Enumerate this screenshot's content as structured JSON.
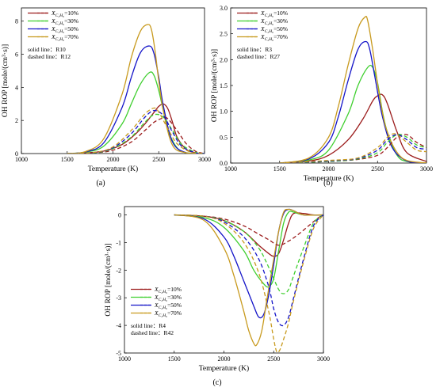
{
  "chart_data": [
    {
      "id": "a",
      "type": "line",
      "panel_label": "(a)",
      "xlabel": "Temperature (K)",
      "ylabel": "OH ROP [mole/(cm³·s)]",
      "xlim": [
        1000,
        3000
      ],
      "ylim": [
        0,
        8.8
      ],
      "xticks": [
        "1000",
        "1500",
        "2000",
        "2500",
        "3000"
      ],
      "yticks": [
        "0",
        "2",
        "4",
        "6",
        "8"
      ],
      "legend_position": "top-left",
      "legend": [
        "X_{C2H6}=10%",
        "X_{C2H6}=30%",
        "X_{C2H6}=50%",
        "X_{C2H6}=70%"
      ],
      "notes": [
        "solid line：R10",
        "dashed line：R12"
      ],
      "colors": [
        "#9b1b1b",
        "#3fcf2f",
        "#1414c8",
        "#c89a1e"
      ],
      "series": [
        {
          "ratio": "10%",
          "style": "solid",
          "x": [
            1500,
            1700,
            1900,
            2100,
            2250,
            2350,
            2450,
            2500,
            2550,
            2600,
            2650,
            2700,
            2800,
            2900,
            3000
          ],
          "values": [
            0,
            0.04,
            0.15,
            0.55,
            1.2,
            1.8,
            2.5,
            2.85,
            3.0,
            2.7,
            1.9,
            1.0,
            0.25,
            0.05,
            0
          ]
        },
        {
          "ratio": "30%",
          "style": "solid",
          "x": [
            1500,
            1700,
            1900,
            2100,
            2200,
            2300,
            2400,
            2450,
            2500,
            2550,
            2600,
            2700,
            2800,
            3000
          ],
          "values": [
            0,
            0.08,
            0.45,
            1.8,
            3.0,
            4.2,
            4.9,
            4.7,
            3.8,
            2.6,
            1.4,
            0.35,
            0.05,
            0
          ]
        },
        {
          "ratio": "50%",
          "style": "solid",
          "x": [
            1500,
            1700,
            1900,
            2100,
            2200,
            2300,
            2400,
            2450,
            2500,
            2550,
            2650,
            2800,
            3000
          ],
          "values": [
            0,
            0.1,
            0.65,
            2.8,
            4.6,
            6.1,
            6.5,
            6.0,
            4.6,
            2.9,
            0.7,
            0.05,
            0
          ]
        },
        {
          "ratio": "70%",
          "style": "solid",
          "x": [
            1500,
            1700,
            1900,
            2100,
            2200,
            2300,
            2380,
            2420,
            2460,
            2500,
            2550,
            2650,
            2800,
            3000
          ],
          "values": [
            0,
            0.12,
            0.9,
            3.6,
            5.8,
            7.4,
            7.8,
            7.5,
            6.2,
            4.4,
            2.6,
            0.5,
            0.05,
            0
          ]
        },
        {
          "ratio": "10%",
          "style": "dashed",
          "x": [
            1500,
            1800,
            2000,
            2200,
            2350,
            2450,
            2550,
            2600,
            2700,
            2800,
            2900,
            3000
          ],
          "values": [
            0,
            0.05,
            0.2,
            0.7,
            1.4,
            1.9,
            2.15,
            2.1,
            1.4,
            0.6,
            0.15,
            0
          ]
        },
        {
          "ratio": "30%",
          "style": "dashed",
          "x": [
            1500,
            1800,
            2000,
            2200,
            2350,
            2450,
            2550,
            2650,
            2750,
            2900,
            3000
          ],
          "values": [
            0,
            0.05,
            0.3,
            1.0,
            1.9,
            2.35,
            2.2,
            1.4,
            0.55,
            0.08,
            0
          ]
        },
        {
          "ratio": "50%",
          "style": "dashed",
          "x": [
            1500,
            1800,
            2000,
            2200,
            2350,
            2450,
            2550,
            2650,
            2750,
            2900,
            3000
          ],
          "values": [
            0,
            0.06,
            0.35,
            1.2,
            2.2,
            2.6,
            2.3,
            1.3,
            0.45,
            0.05,
            0
          ]
        },
        {
          "ratio": "70%",
          "style": "dashed",
          "x": [
            1500,
            1800,
            2000,
            2200,
            2350,
            2450,
            2500,
            2600,
            2700,
            2850,
            3000
          ],
          "values": [
            0,
            0.07,
            0.4,
            1.4,
            2.4,
            2.75,
            2.5,
            1.5,
            0.6,
            0.08,
            0
          ]
        }
      ]
    },
    {
      "id": "b",
      "type": "line",
      "panel_label": "(b)",
      "xlabel": "Temperature (K)",
      "ylabel": "OH ROP [mole/(cm³·s)]",
      "xlim": [
        1000,
        3000
      ],
      "ylim": [
        0,
        3.0
      ],
      "xticks": [
        "1000",
        "1500",
        "2000",
        "2500",
        "3000"
      ],
      "yticks": [
        "0.0",
        "0.5",
        "1.0",
        "1.5",
        "2.0",
        "2.5",
        "3.0"
      ],
      "legend_position": "top-left",
      "legend": [
        "X_{C2H6}=10%",
        "X_{C2H6}=30%",
        "X_{C2H6}=50%",
        "X_{C2H6}=70%"
      ],
      "notes": [
        "solid line：R3",
        "dashed line：R27"
      ],
      "colors": [
        "#9b1b1b",
        "#3fcf2f",
        "#1414c8",
        "#c89a1e"
      ],
      "series": [
        {
          "ratio": "10%",
          "style": "solid",
          "x": [
            1500,
            1800,
            2000,
            2200,
            2350,
            2450,
            2500,
            2550,
            2600,
            2700,
            2800,
            3000
          ],
          "values": [
            0,
            0.04,
            0.15,
            0.45,
            0.85,
            1.2,
            1.3,
            1.32,
            1.15,
            0.6,
            0.2,
            0.03
          ]
        },
        {
          "ratio": "30%",
          "style": "solid",
          "x": [
            1500,
            1800,
            2000,
            2200,
            2300,
            2400,
            2450,
            2500,
            2550,
            2600,
            2700,
            2800,
            3000
          ],
          "values": [
            0,
            0.06,
            0.25,
            0.95,
            1.5,
            1.85,
            1.85,
            1.55,
            1.0,
            0.6,
            0.15,
            0.03,
            0
          ]
        },
        {
          "ratio": "50%",
          "style": "solid",
          "x": [
            1500,
            1800,
            2000,
            2100,
            2200,
            2300,
            2380,
            2420,
            2470,
            2550,
            2650,
            2800,
            3000
          ],
          "values": [
            0,
            0.08,
            0.4,
            0.9,
            1.6,
            2.2,
            2.35,
            2.2,
            1.7,
            0.9,
            0.3,
            0.04,
            0
          ]
        },
        {
          "ratio": "70%",
          "style": "solid",
          "x": [
            1500,
            1800,
            2000,
            2100,
            2200,
            2300,
            2370,
            2400,
            2450,
            2520,
            2600,
            2750,
            3000
          ],
          "values": [
            0,
            0.1,
            0.5,
            1.1,
            1.9,
            2.6,
            2.82,
            2.75,
            2.2,
            1.3,
            0.6,
            0.1,
            0
          ]
        },
        {
          "ratio": "10%",
          "style": "dashed",
          "x": [
            1500,
            2000,
            2300,
            2500,
            2600,
            2700,
            2800,
            2900,
            3000
          ],
          "values": [
            0,
            0.03,
            0.07,
            0.15,
            0.3,
            0.5,
            0.55,
            0.4,
            0.3
          ]
        },
        {
          "ratio": "30%",
          "style": "dashed",
          "x": [
            1500,
            2000,
            2300,
            2500,
            2600,
            2700,
            2800,
            2900,
            3000
          ],
          "values": [
            0,
            0.03,
            0.08,
            0.2,
            0.4,
            0.55,
            0.5,
            0.35,
            0.3
          ]
        },
        {
          "ratio": "50%",
          "style": "dashed",
          "x": [
            1500,
            2000,
            2300,
            2500,
            2600,
            2700,
            2800,
            2900,
            3000
          ],
          "values": [
            0,
            0.04,
            0.09,
            0.25,
            0.45,
            0.55,
            0.45,
            0.3,
            0.27
          ]
        },
        {
          "ratio": "70%",
          "style": "dashed",
          "x": [
            1500,
            2000,
            2300,
            2500,
            2600,
            2650,
            2700,
            2800,
            2900,
            3000
          ],
          "values": [
            0,
            0.05,
            0.1,
            0.3,
            0.5,
            0.56,
            0.55,
            0.4,
            0.25,
            0.22
          ]
        }
      ]
    },
    {
      "id": "c",
      "type": "line",
      "panel_label": "(c)",
      "xlabel": "Temperature (K)",
      "ylabel": "OH ROP [mole/(cm³·s)]",
      "xlim": [
        1000,
        3000
      ],
      "ylim": [
        -5,
        0.3
      ],
      "xticks": [
        "1000",
        "1500",
        "2000",
        "2500",
        "3000"
      ],
      "yticks": [
        "-5",
        "-4",
        "-3",
        "-2",
        "-1",
        "0"
      ],
      "legend_position": "bottom-left",
      "legend": [
        "X_{C2H6}=10%",
        "X_{C2H6}=30%",
        "X_{C2H6}=50%",
        "X_{C2H6}=70%"
      ],
      "notes": [
        "solid line：R4",
        "dashed line：R42"
      ],
      "colors": [
        "#9b1b1b",
        "#3fcf2f",
        "#1414c8",
        "#c89a1e"
      ],
      "series": [
        {
          "ratio": "10%",
          "style": "solid",
          "x": [
            1500,
            1800,
            2000,
            2200,
            2350,
            2450,
            2500,
            2550,
            2600,
            2650,
            2700,
            2800,
            2900,
            3000
          ],
          "values": [
            0,
            -0.05,
            -0.2,
            -0.6,
            -1.1,
            -1.4,
            -1.5,
            -1.4,
            -0.9,
            -0.3,
            0.05,
            0.05,
            0,
            0
          ]
        },
        {
          "ratio": "30%",
          "style": "solid",
          "x": [
            1500,
            1800,
            2000,
            2200,
            2300,
            2400,
            2450,
            2500,
            2550,
            2600,
            2650,
            2700,
            2800,
            3000
          ],
          "values": [
            0,
            -0.1,
            -0.45,
            -1.3,
            -2.0,
            -2.5,
            -2.6,
            -2.3,
            -1.3,
            -0.3,
            0.1,
            0.1,
            0,
            0
          ]
        },
        {
          "ratio": "50%",
          "style": "solid",
          "x": [
            1500,
            1800,
            2000,
            2100,
            2200,
            2300,
            2350,
            2400,
            2450,
            2500,
            2550,
            2600,
            2650,
            2700,
            2800,
            3000
          ],
          "values": [
            0,
            -0.15,
            -0.8,
            -1.5,
            -2.4,
            -3.3,
            -3.7,
            -3.6,
            -2.9,
            -1.8,
            -0.6,
            0.05,
            0.2,
            0.15,
            0,
            0
          ]
        },
        {
          "ratio": "70%",
          "style": "solid",
          "x": [
            1500,
            1800,
            2000,
            2100,
            2200,
            2250,
            2300,
            2330,
            2380,
            2430,
            2500,
            2550,
            2600,
            2650,
            2700,
            2800,
            3000
          ],
          "values": [
            0,
            -0.2,
            -1.2,
            -2.2,
            -3.5,
            -4.2,
            -4.65,
            -4.7,
            -4.2,
            -3.1,
            -1.6,
            -0.6,
            0.1,
            0.2,
            0.15,
            0,
            0
          ]
        },
        {
          "ratio": "10%",
          "style": "dashed",
          "x": [
            1500,
            1800,
            2000,
            2200,
            2350,
            2450,
            2550,
            2650,
            2750,
            2850,
            2950,
            3000
          ],
          "values": [
            0,
            -0.05,
            -0.15,
            -0.4,
            -0.7,
            -0.9,
            -1.1,
            -0.95,
            -0.7,
            -0.4,
            -0.1,
            0
          ]
        },
        {
          "ratio": "30%",
          "style": "dashed",
          "x": [
            1500,
            1800,
            2000,
            2200,
            2350,
            2450,
            2550,
            2600,
            2650,
            2700,
            2800,
            2900,
            3000
          ],
          "values": [
            0,
            -0.05,
            -0.2,
            -0.6,
            -1.2,
            -1.9,
            -2.7,
            -2.85,
            -2.7,
            -2.2,
            -1.2,
            -0.3,
            0
          ]
        },
        {
          "ratio": "50%",
          "style": "dashed",
          "x": [
            1500,
            1800,
            2000,
            2200,
            2350,
            2450,
            2500,
            2550,
            2600,
            2650,
            2700,
            2800,
            2900,
            3000
          ],
          "values": [
            0,
            -0.05,
            -0.25,
            -0.8,
            -1.6,
            -2.6,
            -3.4,
            -3.9,
            -4.0,
            -3.7,
            -3.0,
            -1.6,
            -0.4,
            0
          ]
        },
        {
          "ratio": "70%",
          "style": "dashed",
          "x": [
            1500,
            1800,
            2000,
            2200,
            2350,
            2450,
            2500,
            2530,
            2560,
            2600,
            2650,
            2700,
            2800,
            2900,
            3000
          ],
          "values": [
            0,
            -0.05,
            -0.3,
            -1.0,
            -2.1,
            -3.5,
            -4.5,
            -4.95,
            -4.9,
            -4.5,
            -3.9,
            -3.1,
            -1.7,
            -0.5,
            0
          ]
        }
      ]
    }
  ]
}
